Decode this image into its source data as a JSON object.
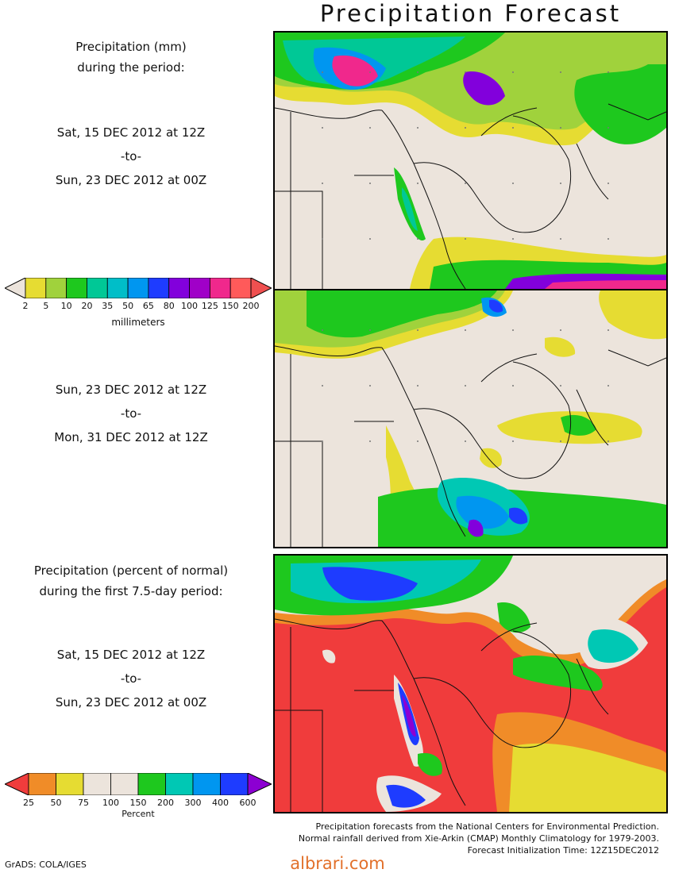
{
  "title": "Precipitation Forecast",
  "panel1": {
    "heading_line1": "Precipitation (mm)",
    "heading_line2": "during the period:",
    "start": "Sat, 15 DEC 2012 at 12Z",
    "sep": "-to-",
    "end": "Sun, 23 DEC 2012 at 00Z"
  },
  "panel2": {
    "start": "Sun, 23 DEC 2012 at 12Z",
    "sep": "-to-",
    "end": "Mon, 31 DEC 2012 at 12Z"
  },
  "panel3": {
    "heading_line1": "Precipitation (percent of normal)",
    "heading_line2": "during the first 7.5-day period:",
    "start": "Sat, 15 DEC 2012 at 12Z",
    "sep": "-to-",
    "end": "Sun, 23 DEC 2012 at 00Z"
  },
  "colorbar_mm": {
    "unit": "millimeters",
    "ticks": [
      "2",
      "5",
      "10",
      "20",
      "35",
      "50",
      "65",
      "80",
      "100",
      "125",
      "150",
      "200"
    ],
    "colors": [
      "#ece4dc",
      "#e6dc32",
      "#a0d23c",
      "#1ec81e",
      "#00c896",
      "#00bec8",
      "#0096f0",
      "#1e3cff",
      "#8200dc",
      "#a000c8",
      "#f0288c",
      "#ff5a5a",
      "#f05050"
    ]
  },
  "colorbar_pct": {
    "unit": "Percent",
    "ticks": [
      "25",
      "50",
      "75",
      "100",
      "150",
      "200",
      "300",
      "400",
      "600"
    ],
    "colors": [
      "#f03c3c",
      "#f08c28",
      "#e6dc32",
      "#ece4dc",
      "#ece4dc",
      "#1ec81e",
      "#00c8b4",
      "#0096f0",
      "#1e3cff",
      "#8c00d2"
    ]
  },
  "footer": {
    "line1": "Precipitation forecasts from the National Centers for Environmental Prediction.",
    "line2": "Normal rainfall derived from Xie-Arkin (CMAP) Monthly Climatology for 1979-2003.",
    "line3": "Forecast Initialization Time: 12Z15DEC2012"
  },
  "credit": "GrADS: COLA/IGES",
  "watermark": "albrari.com"
}
